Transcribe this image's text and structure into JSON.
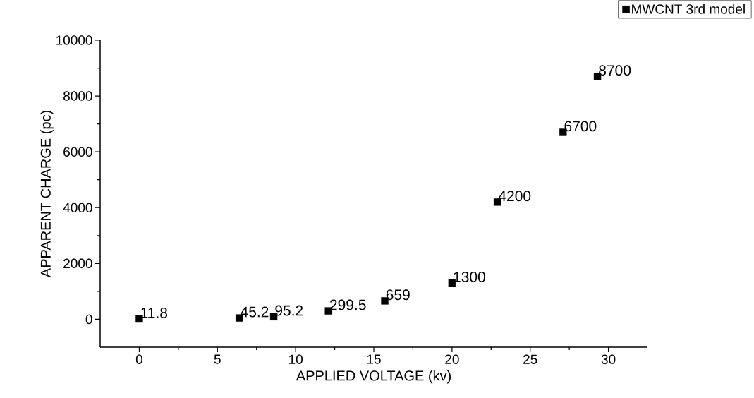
{
  "chart_data": {
    "type": "scatter",
    "xlabel": "APPLIED VOLTAGE (kv)",
    "ylabel": "APPARENT CHARGE (pc)",
    "x": [
      0,
      6.4,
      8.6,
      12.1,
      15.7,
      20,
      22.9,
      27.1,
      29.3
    ],
    "series": [
      {
        "name": "MWCNT 3rd model",
        "color": "#000000",
        "values": [
          11.8,
          45.2,
          95.2,
          299.5,
          659,
          1300,
          4200,
          6700,
          8700
        ]
      }
    ],
    "xlim": [
      -2.5,
      32.5
    ],
    "ylim": [
      -1000,
      10000
    ],
    "xticks": [
      0,
      5,
      10,
      15,
      20,
      25,
      30
    ],
    "yticks": [
      0,
      2000,
      4000,
      6000,
      8000,
      10000
    ],
    "marker": "square",
    "legend": "top right",
    "data_labels": true,
    "grid": false
  }
}
